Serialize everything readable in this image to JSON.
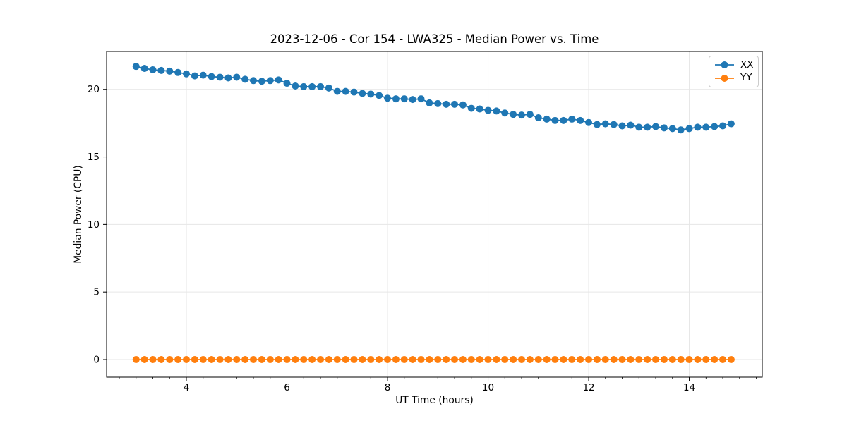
{
  "chart": {
    "title": "2023-12-06 - Cor 154 - LWA325 - Median Power vs. Time",
    "xlabel": "UT Time (hours)",
    "ylabel": "Median Power (CPU)"
  },
  "legend": {
    "position": "upper right",
    "items": [
      {
        "label": "XX",
        "color": "#1f77b4"
      },
      {
        "label": "YY",
        "color": "#ff7f0e"
      }
    ]
  },
  "colors": {
    "background": "#ffffff",
    "grid": "#e6e6e6",
    "spine": "#000000",
    "text": "#000000"
  },
  "chart_data": {
    "type": "line",
    "title": "2023-12-06 - Cor 154 - LWA325 - Median Power vs. Time",
    "xlabel": "UT Time (hours)",
    "ylabel": "Median Power (CPU)",
    "xlim": [
      2.414,
      15.452
    ],
    "ylim": [
      -1.305,
      22.805
    ],
    "xticks": [
      4,
      6,
      8,
      10,
      12,
      14
    ],
    "xtick_labels": [
      "4",
      "6",
      "8",
      "10",
      "12",
      "14"
    ],
    "yticks": [
      0,
      5,
      10,
      15,
      20
    ],
    "ytick_labels": [
      "0",
      "5",
      "10",
      "15",
      "20"
    ],
    "x_minor_tick_step": 0.33333,
    "grid": true,
    "legend_position": "upper right",
    "marker": "circle",
    "marker_radius": 5,
    "line_width": 1.8,
    "x": [
      3.0,
      3.167,
      3.333,
      3.5,
      3.667,
      3.833,
      4.0,
      4.167,
      4.333,
      4.5,
      4.667,
      4.833,
      5.0,
      5.167,
      5.333,
      5.5,
      5.667,
      5.833,
      6.0,
      6.167,
      6.333,
      6.5,
      6.667,
      6.833,
      7.0,
      7.167,
      7.333,
      7.5,
      7.667,
      7.833,
      8.0,
      8.167,
      8.333,
      8.5,
      8.667,
      8.833,
      9.0,
      9.167,
      9.333,
      9.5,
      9.667,
      9.833,
      10.0,
      10.167,
      10.333,
      10.5,
      10.667,
      10.833,
      11.0,
      11.167,
      11.333,
      11.5,
      11.667,
      11.833,
      12.0,
      12.167,
      12.333,
      12.5,
      12.667,
      12.833,
      13.0,
      13.167,
      13.333,
      13.5,
      13.667,
      13.833,
      14.0,
      14.167,
      14.333,
      14.5,
      14.667,
      14.833
    ],
    "series": [
      {
        "name": "XX",
        "color": "#1f77b4",
        "values": [
          21.7,
          21.55,
          21.45,
          21.4,
          21.35,
          21.25,
          21.15,
          21.0,
          21.05,
          20.95,
          20.9,
          20.85,
          20.9,
          20.75,
          20.65,
          20.6,
          20.65,
          20.7,
          20.45,
          20.25,
          20.2,
          20.2,
          20.2,
          20.1,
          19.85,
          19.85,
          19.8,
          19.7,
          19.65,
          19.55,
          19.35,
          19.3,
          19.3,
          19.25,
          19.3,
          19.0,
          18.95,
          18.9,
          18.9,
          18.85,
          18.6,
          18.55,
          18.45,
          18.4,
          18.25,
          18.15,
          18.1,
          18.15,
          17.9,
          17.8,
          17.7,
          17.7,
          17.8,
          17.7,
          17.55,
          17.4,
          17.45,
          17.4,
          17.3,
          17.35,
          17.2,
          17.2,
          17.25,
          17.15,
          17.1,
          17.0,
          17.1,
          17.2,
          17.2,
          17.25,
          17.3,
          17.45
        ]
      },
      {
        "name": "YY",
        "color": "#ff7f0e",
        "values": [
          0,
          0,
          0,
          0,
          0,
          0,
          0,
          0,
          0,
          0,
          0,
          0,
          0,
          0,
          0,
          0,
          0,
          0,
          0,
          0,
          0,
          0,
          0,
          0,
          0,
          0,
          0,
          0,
          0,
          0,
          0,
          0,
          0,
          0,
          0,
          0,
          0,
          0,
          0,
          0,
          0,
          0,
          0,
          0,
          0,
          0,
          0,
          0,
          0,
          0,
          0,
          0,
          0,
          0,
          0,
          0,
          0,
          0,
          0,
          0,
          0,
          0,
          0,
          0,
          0,
          0,
          0,
          0,
          0,
          0,
          0,
          0
        ]
      }
    ]
  }
}
